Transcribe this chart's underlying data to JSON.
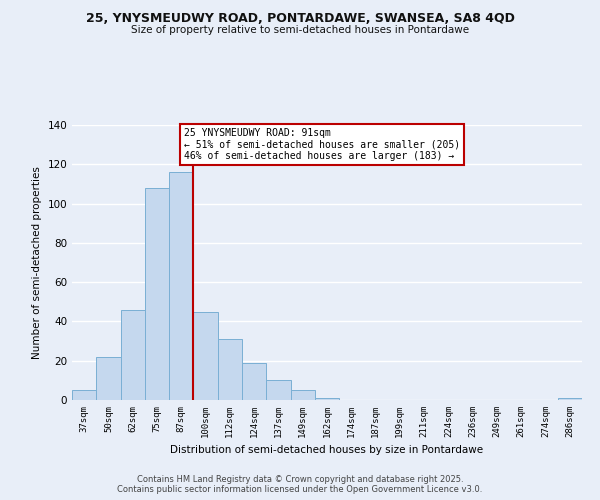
{
  "title_line1": "25, YNYSMEUDWY ROAD, PONTARDAWE, SWANSEA, SA8 4QD",
  "title_line2": "Size of property relative to semi-detached houses in Pontardawe",
  "bar_labels": [
    "37sqm",
    "50sqm",
    "62sqm",
    "75sqm",
    "87sqm",
    "100sqm",
    "112sqm",
    "124sqm",
    "137sqm",
    "149sqm",
    "162sqm",
    "174sqm",
    "187sqm",
    "199sqm",
    "211sqm",
    "224sqm",
    "236sqm",
    "249sqm",
    "261sqm",
    "274sqm",
    "286sqm"
  ],
  "bar_values": [
    5,
    22,
    46,
    108,
    116,
    45,
    31,
    19,
    10,
    5,
    1,
    0,
    0,
    0,
    0,
    0,
    0,
    0,
    0,
    0,
    1
  ],
  "bar_color": "#c5d8ee",
  "bar_edge_color": "#7aafd4",
  "vline_color": "#bb0000",
  "ylabel": "Number of semi-detached properties",
  "xlabel": "Distribution of semi-detached houses by size in Pontardawe",
  "ylim": [
    0,
    140
  ],
  "yticks": [
    0,
    20,
    40,
    60,
    80,
    100,
    120,
    140
  ],
  "annotation_title": "25 YNYSMEUDWY ROAD: 91sqm",
  "annotation_line2": "← 51% of semi-detached houses are smaller (205)",
  "annotation_line3": "46% of semi-detached houses are larger (183) →",
  "annotation_box_color": "#ffffff",
  "annotation_box_edge": "#bb0000",
  "footer_line1": "Contains HM Land Registry data © Crown copyright and database right 2025.",
  "footer_line2": "Contains public sector information licensed under the Open Government Licence v3.0.",
  "background_color": "#e8eef8",
  "grid_color": "#ffffff"
}
